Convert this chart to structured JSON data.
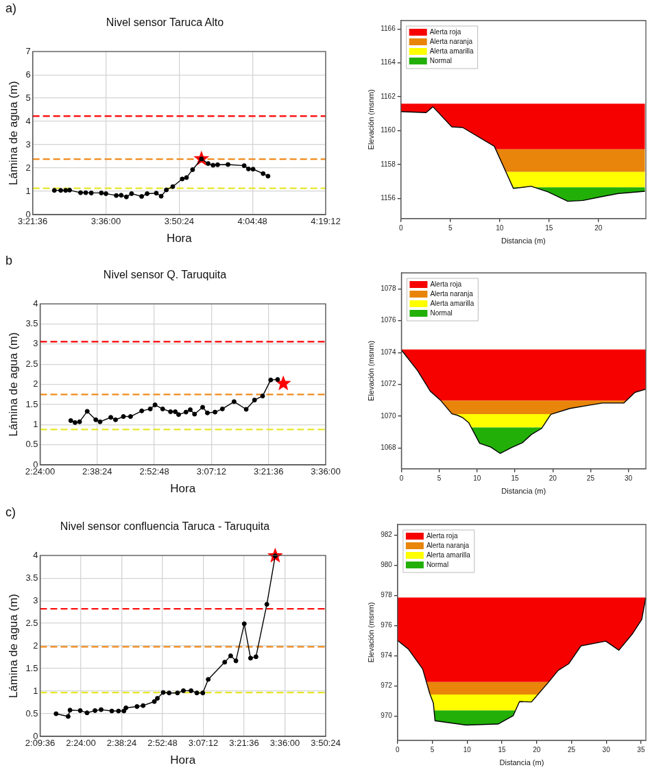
{
  "chart_data": [
    {
      "type": "line",
      "title": "Nivel sensor Taruca Alto",
      "xlabel": "Hora",
      "ylabel": "Lámina de agua (m)",
      "annotations": [
        "a)"
      ],
      "xlim": [
        3.36,
        4.32
      ],
      "xticks": [
        {
          "value": 3.36,
          "label": "3:21:36"
        },
        {
          "value": 3.6,
          "label": "3:36:00"
        },
        {
          "value": 3.84,
          "label": "3:50:24"
        },
        {
          "value": 4.08,
          "label": "4:04:48"
        },
        {
          "value": 4.32,
          "label": "4:19:12"
        }
      ],
      "ylim": [
        0,
        7
      ],
      "yticks": [
        0,
        1,
        2,
        3,
        4,
        5,
        6,
        7
      ],
      "grid": true,
      "marker": "circle",
      "series": [
        {
          "color": "#000000",
          "x": [
            3.431,
            3.452,
            3.468,
            3.481,
            3.517,
            3.534,
            3.552,
            3.585,
            3.6,
            3.634,
            3.65,
            3.667,
            3.684,
            3.717,
            3.735,
            3.765,
            3.781,
            3.798,
            3.819,
            3.85,
            3.864,
            3.884,
            3.913,
            3.935,
            3.951,
            3.966,
            4.0,
            4.053,
            4.067,
            4.082,
            4.115,
            4.131
          ],
          "values": [
            1.04,
            1.04,
            1.04,
            1.05,
            0.94,
            0.94,
            0.93,
            0.93,
            0.9,
            0.82,
            0.83,
            0.76,
            0.9,
            0.78,
            0.9,
            0.92,
            0.79,
            1.06,
            1.2,
            1.53,
            1.59,
            1.93,
            2.39,
            2.19,
            2.12,
            2.14,
            2.15,
            2.1,
            1.96,
            1.95,
            1.76,
            1.65
          ]
        },
        {
          "type": "scatter",
          "marker": "star",
          "color": "#ff0000",
          "x": [
            3.913
          ],
          "values": [
            2.39
          ]
        }
      ],
      "ref_lines": [
        {
          "axis": "y",
          "value": 4.23,
          "color": "#ff0000",
          "line_style": "dashed"
        },
        {
          "axis": "y",
          "value": 2.38,
          "color": "#f08a1c",
          "line_style": "dashed"
        },
        {
          "axis": "y",
          "value": 1.13,
          "color": "#e6e62a",
          "line_style": "dashed"
        }
      ]
    },
    {
      "type": "line",
      "xlabel": "Distancia (m)",
      "ylabel": "Elevación (msnm)",
      "xlim": [
        0,
        24.8
      ],
      "xticks": [
        0,
        5,
        10,
        15,
        20
      ],
      "ylim": [
        1154.8,
        1166.5
      ],
      "yticks": [
        1156,
        1158,
        1160,
        1162,
        1164,
        1166
      ],
      "legend": "top left",
      "series": [
        {
          "color": "#000000",
          "x": [
            0,
            2.55,
            3.24,
            5.15,
            6.26,
            9.46,
            11.39,
            13.17,
            14.89,
            16.9,
            18.44,
            20.09,
            21.99,
            24.7
          ],
          "values": [
            1161.12,
            1161.06,
            1161.41,
            1160.22,
            1160.18,
            1159.07,
            1156.58,
            1156.71,
            1156.38,
            1155.82,
            1155.87,
            1156.07,
            1156.28,
            1156.41
          ]
        }
      ],
      "bands": [
        {
          "axis": "y",
          "from": 1158.89,
          "to": 1161.59,
          "label": "Alerta roja",
          "color": "#f70000"
        },
        {
          "axis": "y",
          "from": 1157.56,
          "to": 1158.89,
          "label": "Alerta naranja",
          "color": "#e8850a"
        },
        {
          "axis": "y",
          "from": 1156.65,
          "to": 1157.56,
          "label": "Alerta amarilla",
          "color": "#ffff00"
        },
        {
          "axis": "y",
          "from": 1155.82,
          "to": 1156.65,
          "label": "Normal",
          "color": "#22b008"
        }
      ]
    },
    {
      "type": "line",
      "title": "Nivel sensor Q. Taruquita",
      "xlabel": "Hora",
      "ylabel": "Lámina de agua (m)",
      "annotations": [
        "b"
      ],
      "xlim": [
        2.4,
        3.6
      ],
      "xticks": [
        {
          "value": 2.4,
          "label": "2:24:00"
        },
        {
          "value": 2.64,
          "label": "2:38:24"
        },
        {
          "value": 2.88,
          "label": "2:52:48"
        },
        {
          "value": 3.12,
          "label": "3:07:12"
        },
        {
          "value": 3.36,
          "label": "3:21:36"
        },
        {
          "value": 3.6,
          "label": "3:36:00"
        }
      ],
      "ylim": [
        0,
        4
      ],
      "yticks": [
        0,
        0.5,
        1,
        1.5,
        2,
        2.5,
        3,
        3.5,
        4
      ],
      "grid": true,
      "marker": "circle",
      "series": [
        {
          "color": "#000000",
          "x": [
            2.529,
            2.547,
            2.566,
            2.598,
            2.634,
            2.652,
            2.697,
            2.717,
            2.75,
            2.78,
            2.827,
            2.863,
            2.883,
            2.915,
            2.948,
            2.968,
            2.982,
            3.013,
            3.031,
            3.049,
            3.083,
            3.103,
            3.135,
            3.166,
            3.215,
            3.266,
            3.301,
            3.335,
            3.369,
            3.398
          ],
          "values": [
            1.1,
            1.05,
            1.07,
            1.33,
            1.12,
            1.07,
            1.18,
            1.12,
            1.2,
            1.2,
            1.34,
            1.39,
            1.49,
            1.39,
            1.32,
            1.32,
            1.25,
            1.31,
            1.37,
            1.26,
            1.43,
            1.29,
            1.31,
            1.39,
            1.57,
            1.38,
            1.61,
            1.71,
            2.11,
            2.12
          ]
        },
        {
          "type": "scatter",
          "marker": "star",
          "color": "#ff0000",
          "x": [
            3.422
          ],
          "values": [
            2.02
          ]
        }
      ],
      "ref_lines": [
        {
          "axis": "y",
          "value": 3.06,
          "color": "#ff0000",
          "line_style": "dashed"
        },
        {
          "axis": "y",
          "value": 1.75,
          "color": "#f08a1c",
          "line_style": "dashed"
        },
        {
          "axis": "y",
          "value": 0.88,
          "color": "#e6e62a",
          "line_style": "dashed"
        }
      ]
    },
    {
      "type": "line",
      "xlabel": "Distancia (m)",
      "ylabel": "Elevación (msnm)",
      "xlim": [
        0,
        32.3
      ],
      "xticks": [
        0,
        5,
        10,
        15,
        20,
        25,
        30
      ],
      "ylim": [
        1066.7,
        1079
      ],
      "yticks": [
        1068,
        1070,
        1072,
        1074,
        1076,
        1078
      ],
      "legend": "top left",
      "series": [
        {
          "color": "#000000",
          "x": [
            0,
            2.14,
            3.82,
            5.21,
            6.68,
            7.36,
            8.13,
            8.89,
            10.34,
            11.81,
            13.04,
            14.58,
            15.96,
            17.19,
            18.51,
            19.74,
            22.26,
            25.02,
            26.56,
            29.39,
            30.86,
            32.3
          ],
          "values": [
            1074.16,
            1072.86,
            1071.57,
            1070.98,
            1070.15,
            1070.07,
            1069.9,
            1069.6,
            1068.3,
            1068.06,
            1067.67,
            1068.04,
            1068.33,
            1068.86,
            1069.23,
            1070.12,
            1070.49,
            1070.71,
            1070.83,
            1070.83,
            1071.5,
            1071.7
          ]
        }
      ],
      "bands": [
        {
          "axis": "y",
          "from": 1070.98,
          "to": 1074.19,
          "label": "Alerta roja",
          "color": "#f70000"
        },
        {
          "axis": "y",
          "from": 1070.13,
          "to": 1070.98,
          "label": "Alerta naranja",
          "color": "#e8850a"
        },
        {
          "axis": "y",
          "from": 1069.29,
          "to": 1070.13,
          "label": "Alerta amarilla",
          "color": "#ffff00"
        },
        {
          "axis": "y",
          "from": 1067.67,
          "to": 1069.29,
          "label": "Normal",
          "color": "#22b008"
        }
      ]
    },
    {
      "type": "line",
      "title": "Nivel sensor confluencia Taruca - Taruquita",
      "xlabel": "Hora",
      "ylabel": "Lámina de agua (m)",
      "annotations": [
        "c)"
      ],
      "xlim": [
        2.16,
        3.84
      ],
      "xticks": [
        {
          "value": 2.16,
          "label": "2:09:36"
        },
        {
          "value": 2.4,
          "label": "2:24:00"
        },
        {
          "value": 2.64,
          "label": "2:38:24"
        },
        {
          "value": 2.88,
          "label": "2:52:48"
        },
        {
          "value": 3.12,
          "label": "3:07:12"
        },
        {
          "value": 3.36,
          "label": "3:21:36"
        },
        {
          "value": 3.6,
          "label": "3:36:00"
        },
        {
          "value": 3.84,
          "label": "3:50:24"
        }
      ],
      "ylim": [
        0,
        4
      ],
      "yticks": [
        0,
        0.5,
        1,
        1.5,
        2,
        2.5,
        3,
        3.5,
        4
      ],
      "grid": true,
      "marker": "circle",
      "series": [
        {
          "color": "#000000",
          "x": [
            2.254,
            2.325,
            2.336,
            2.396,
            2.436,
            2.483,
            2.519,
            2.582,
            2.621,
            2.653,
            2.665,
            2.73,
            2.766,
            2.832,
            2.85,
            2.884,
            2.919,
            2.968,
            3.003,
            3.048,
            3.082,
            3.117,
            3.149,
            3.246,
            3.281,
            3.312,
            3.361,
            3.398,
            3.43,
            3.494,
            3.543
          ],
          "values": [
            0.5,
            0.44,
            0.58,
            0.57,
            0.52,
            0.57,
            0.59,
            0.56,
            0.56,
            0.56,
            0.63,
            0.66,
            0.68,
            0.77,
            0.84,
            0.97,
            0.96,
            0.96,
            1.01,
            1.01,
            0.96,
            0.96,
            1.26,
            1.64,
            1.78,
            1.67,
            2.49,
            1.73,
            1.76,
            2.92,
            3.99
          ]
        },
        {
          "type": "scatter",
          "marker": "star",
          "color": "#ff0000",
          "x": [
            3.543
          ],
          "values": [
            3.99
          ]
        }
      ],
      "ref_lines": [
        {
          "axis": "y",
          "value": 2.82,
          "color": "#ff0000",
          "line_style": "dashed"
        },
        {
          "axis": "y",
          "value": 1.98,
          "color": "#f08a1c",
          "line_style": "dashed"
        },
        {
          "axis": "y",
          "value": 0.97,
          "color": "#e6e62a",
          "line_style": "dashed"
        }
      ]
    },
    {
      "type": "line",
      "xlabel": "Distancia (m)",
      "ylabel": "Elevación (msnm)",
      "xlim": [
        0,
        35.7
      ],
      "xticks": [
        0,
        5,
        10,
        15,
        20,
        25,
        30,
        35
      ],
      "ylim": [
        968.4,
        982.7
      ],
      "yticks": [
        970,
        972,
        974,
        976,
        978,
        980,
        982
      ],
      "legend": "top left",
      "series": [
        {
          "color": "#000000",
          "x": [
            0,
            1.54,
            3.6,
            4.62,
            5.14,
            5.38,
            9.83,
            14.45,
            16.61,
            17.53,
            19.25,
            21.75,
            23.08,
            24.62,
            26.37,
            29.93,
            31.82,
            33.8,
            35.1,
            35.68
          ],
          "values": [
            975.01,
            974.45,
            973.13,
            971.5,
            970.87,
            969.7,
            969.41,
            969.48,
            970.03,
            970.97,
            970.94,
            972.28,
            973.03,
            973.48,
            974.66,
            974.97,
            974.37,
            975.48,
            976.4,
            977.83
          ]
        }
      ],
      "bands": [
        {
          "axis": "y",
          "from": 972.26,
          "to": 977.86,
          "label": "Alerta roja",
          "color": "#f70000"
        },
        {
          "axis": "y",
          "from": 971.43,
          "to": 972.26,
          "label": "Alerta naranja",
          "color": "#e8850a"
        },
        {
          "axis": "y",
          "from": 970.38,
          "to": 971.43,
          "label": "Alerta amarilla",
          "color": "#ffff00"
        },
        {
          "axis": "y",
          "from": 969.41,
          "to": 970.38,
          "label": "Normal",
          "color": "#22b008"
        }
      ]
    }
  ]
}
